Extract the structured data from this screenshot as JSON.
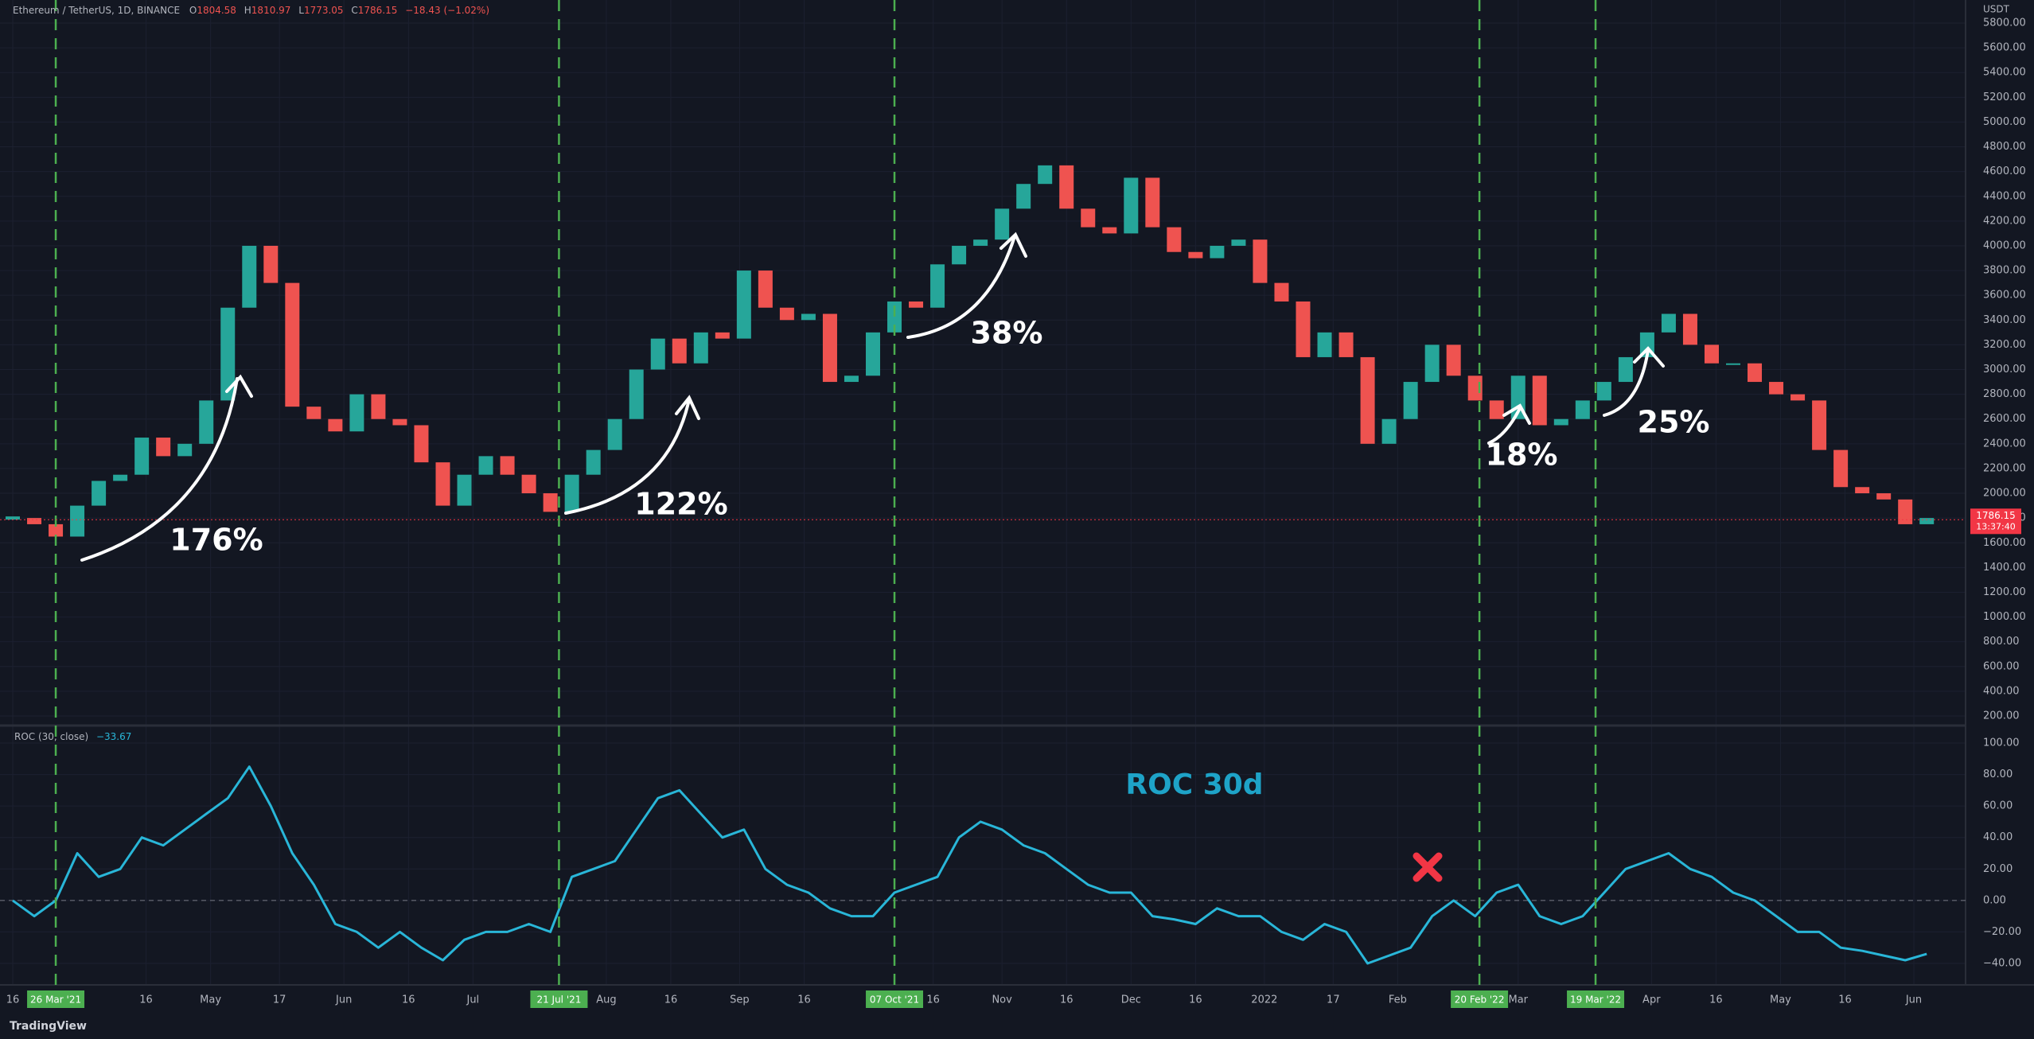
{
  "header": {
    "symbol": "Ethereum / TetherUS, 1D, BINANCE",
    "ohlc": [
      {
        "key": "O",
        "value": "1804.58"
      },
      {
        "key": "H",
        "value": "1810.97"
      },
      {
        "key": "L",
        "value": "1773.05"
      },
      {
        "key": "C",
        "value": "1786.15"
      }
    ],
    "change": "−18.43 (−1.02%)"
  },
  "indicator": {
    "label": "ROC (30, close)",
    "value": "−33.67"
  },
  "brand": "TradingView",
  "chart_data": [
    {
      "type": "candle",
      "ylabel": "USDT",
      "up_color": "#26a69a",
      "down_color": "#ef5350",
      "grid": true,
      "last_value": 1786.15,
      "countdown": "13:37:40",
      "last_color": "#f23645",
      "ylim": [
        200,
        5800
      ],
      "yticks": [
        {
          "value": 200,
          "label": "200.00"
        },
        {
          "value": 400,
          "label": "400.00"
        },
        {
          "value": 600,
          "label": "600.00"
        },
        {
          "value": 800,
          "label": "800.00"
        },
        {
          "value": 1000,
          "label": "1000.00"
        },
        {
          "value": 1200,
          "label": "1200.00"
        },
        {
          "value": 1400,
          "label": "1400.00"
        },
        {
          "value": 1600,
          "label": "1600.00"
        },
        {
          "value": 1800,
          "label": "1800.00"
        },
        {
          "value": 2000,
          "label": "2000.00"
        },
        {
          "value": 2200,
          "label": "2200.00"
        },
        {
          "value": 2400,
          "label": "2400.00"
        },
        {
          "value": 2600,
          "label": "2600.00"
        },
        {
          "value": 2800,
          "label": "2800.00"
        },
        {
          "value": 3000,
          "label": "3000.00"
        },
        {
          "value": 3200,
          "label": "3200.00"
        },
        {
          "value": 3400,
          "label": "3400.00"
        },
        {
          "value": 3600,
          "label": "3600.00"
        },
        {
          "value": 3800,
          "label": "3800.00"
        },
        {
          "value": 4000,
          "label": "4000.00"
        },
        {
          "value": 4200,
          "label": "4200.00"
        },
        {
          "value": 4400,
          "label": "4400.00"
        },
        {
          "value": 4600,
          "label": "4600.00"
        },
        {
          "value": 4800,
          "label": "4800.00"
        },
        {
          "value": 5000,
          "label": "5000.00"
        },
        {
          "value": 5200,
          "label": "5200.00"
        },
        {
          "value": 5400,
          "label": "5400.00"
        },
        {
          "value": 5600,
          "label": "5600.00"
        },
        {
          "value": 5800,
          "label": "5800.00"
        }
      ],
      "x": [
        "2021-03-16",
        "2021-03-21",
        "2021-03-26",
        "2021-03-31",
        "2021-04-05",
        "2021-04-10",
        "2021-04-15",
        "2021-04-20",
        "2021-04-25",
        "2021-04-30",
        "2021-05-05",
        "2021-05-10",
        "2021-05-15",
        "2021-05-20",
        "2021-05-25",
        "2021-05-30",
        "2021-06-04",
        "2021-06-09",
        "2021-06-14",
        "2021-06-19",
        "2021-06-24",
        "2021-06-29",
        "2021-07-04",
        "2021-07-09",
        "2021-07-14",
        "2021-07-19",
        "2021-07-24",
        "2021-07-29",
        "2021-08-03",
        "2021-08-08",
        "2021-08-13",
        "2021-08-18",
        "2021-08-23",
        "2021-08-28",
        "2021-09-02",
        "2021-09-07",
        "2021-09-12",
        "2021-09-17",
        "2021-09-22",
        "2021-09-27",
        "2021-10-02",
        "2021-10-07",
        "2021-10-12",
        "2021-10-17",
        "2021-10-22",
        "2021-10-27",
        "2021-11-01",
        "2021-11-06",
        "2021-11-11",
        "2021-11-16",
        "2021-11-21",
        "2021-11-26",
        "2021-12-01",
        "2021-12-06",
        "2021-12-11",
        "2021-12-16",
        "2021-12-21",
        "2021-12-26",
        "2021-12-31",
        "2022-01-05",
        "2022-01-10",
        "2022-01-15",
        "2022-01-20",
        "2022-01-25",
        "2022-01-30",
        "2022-02-04",
        "2022-02-09",
        "2022-02-14",
        "2022-02-19",
        "2022-02-24",
        "2022-03-01",
        "2022-03-06",
        "2022-03-11",
        "2022-03-16",
        "2022-03-21",
        "2022-03-26",
        "2022-03-31",
        "2022-04-05",
        "2022-04-10",
        "2022-04-15",
        "2022-04-20",
        "2022-04-25",
        "2022-04-30",
        "2022-05-05",
        "2022-05-10",
        "2022-05-15",
        "2022-05-20",
        "2022-05-25",
        "2022-05-30",
        "2022-06-04"
      ],
      "values": [
        1800,
        1750,
        1650,
        1900,
        2100,
        2150,
        2450,
        2300,
        2400,
        2750,
        3500,
        4000,
        3700,
        2700,
        2600,
        2500,
        2800,
        2600,
        2550,
        2250,
        1900,
        2150,
        2300,
        2150,
        2000,
        1850,
        2150,
        2350,
        2600,
        3000,
        3250,
        3050,
        3300,
        3250,
        3800,
        3500,
        3400,
        3450,
        2900,
        2950,
        3300,
        3550,
        3500,
        3850,
        4000,
        4050,
        4300,
        4500,
        4650,
        4300,
        4150,
        4100,
        4550,
        4150,
        3950,
        3900,
        4000,
        4050,
        3700,
        3550,
        3100,
        3300,
        3100,
        2400,
        2600,
        2900,
        3200,
        2950,
        2750,
        2600,
        2950,
        2550,
        2600,
        2750,
        2900,
        3100,
        3300,
        3450,
        3200,
        3050,
        3050,
        2900,
        2800,
        2750,
        2350,
        2050,
        2000,
        1950,
        1750,
        1800
      ],
      "annotations": [
        "176%",
        "122%",
        "38%",
        "18%",
        "25%"
      ]
    },
    {
      "type": "line",
      "color": "#29b6d8",
      "grid": true,
      "ylim": [
        -40,
        100
      ],
      "yticks": [
        {
          "value": 100,
          "label": "100.00"
        },
        {
          "value": 80,
          "label": "80.00"
        },
        {
          "value": 60,
          "label": "60.00"
        },
        {
          "value": 40,
          "label": "40.00"
        },
        {
          "value": 20,
          "label": "20.00"
        },
        {
          "value": 0,
          "label": "0.00"
        },
        {
          "value": -20,
          "label": "−20.00"
        },
        {
          "value": -40,
          "label": "−40.00"
        }
      ],
      "x": [
        "2021-03-16",
        "2021-03-21",
        "2021-03-26",
        "2021-03-31",
        "2021-04-05",
        "2021-04-10",
        "2021-04-15",
        "2021-04-20",
        "2021-04-25",
        "2021-04-30",
        "2021-05-05",
        "2021-05-10",
        "2021-05-15",
        "2021-05-20",
        "2021-05-25",
        "2021-05-30",
        "2021-06-04",
        "2021-06-09",
        "2021-06-14",
        "2021-06-19",
        "2021-06-24",
        "2021-06-29",
        "2021-07-04",
        "2021-07-09",
        "2021-07-14",
        "2021-07-19",
        "2021-07-24",
        "2021-07-29",
        "2021-08-03",
        "2021-08-08",
        "2021-08-13",
        "2021-08-18",
        "2021-08-23",
        "2021-08-28",
        "2021-09-02",
        "2021-09-07",
        "2021-09-12",
        "2021-09-17",
        "2021-09-22",
        "2021-09-27",
        "2021-10-02",
        "2021-10-07",
        "2021-10-12",
        "2021-10-17",
        "2021-10-22",
        "2021-10-27",
        "2021-11-01",
        "2021-11-06",
        "2021-11-11",
        "2021-11-16",
        "2021-11-21",
        "2021-11-26",
        "2021-12-01",
        "2021-12-06",
        "2021-12-11",
        "2021-12-16",
        "2021-12-21",
        "2021-12-26",
        "2021-12-31",
        "2022-01-05",
        "2022-01-10",
        "2022-01-15",
        "2022-01-20",
        "2022-01-25",
        "2022-01-30",
        "2022-02-04",
        "2022-02-09",
        "2022-02-14",
        "2022-02-19",
        "2022-02-24",
        "2022-03-01",
        "2022-03-06",
        "2022-03-11",
        "2022-03-16",
        "2022-03-21",
        "2022-03-26",
        "2022-03-31",
        "2022-04-05",
        "2022-04-10",
        "2022-04-15",
        "2022-04-20",
        "2022-04-25",
        "2022-04-30",
        "2022-05-05",
        "2022-05-10",
        "2022-05-15",
        "2022-05-20",
        "2022-05-25",
        "2022-05-30",
        "2022-06-04"
      ],
      "values": [
        0,
        -10,
        0,
        30,
        15,
        20,
        40,
        35,
        45,
        55,
        65,
        85,
        60,
        30,
        10,
        -15,
        -20,
        -30,
        -20,
        -30,
        -38,
        -25,
        -20,
        -20,
        -15,
        -20,
        15,
        20,
        25,
        45,
        65,
        70,
        55,
        40,
        45,
        20,
        10,
        5,
        -5,
        -10,
        -10,
        5,
        10,
        15,
        40,
        50,
        45,
        35,
        30,
        20,
        10,
        5,
        5,
        -10,
        -12,
        -15,
        -5,
        -10,
        -10,
        -20,
        -25,
        -15,
        -20,
        -40,
        -35,
        -30,
        -10,
        0,
        -10,
        5,
        10,
        -10,
        -15,
        -10,
        5,
        20,
        25,
        30,
        20,
        15,
        5,
        0,
        -10,
        -20,
        -20,
        -30,
        -32,
        -35,
        -38,
        -34
      ],
      "annotations": [
        "ROC 30d"
      ],
      "xticks": [
        {
          "value": "2021-03-16",
          "label": "16"
        },
        {
          "value": "2021-04-16",
          "label": "16"
        },
        {
          "value": "2021-05-01",
          "label": "May"
        },
        {
          "value": "2021-05-17",
          "label": "17"
        },
        {
          "value": "2021-06-01",
          "label": "Jun"
        },
        {
          "value": "2021-06-16",
          "label": "16"
        },
        {
          "value": "2021-07-01",
          "label": "Jul"
        },
        {
          "value": "2021-08-01",
          "label": "Aug"
        },
        {
          "value": "2021-08-16",
          "label": "16"
        },
        {
          "value": "2021-09-01",
          "label": "Sep"
        },
        {
          "value": "2021-09-16",
          "label": "16"
        },
        {
          "value": "2021-10-16",
          "label": "16"
        },
        {
          "value": "2021-11-01",
          "label": "Nov"
        },
        {
          "value": "2021-11-16",
          "label": "16"
        },
        {
          "value": "2021-12-01",
          "label": "Dec"
        },
        {
          "value": "2021-12-16",
          "label": "16"
        },
        {
          "value": "2022-01-01",
          "label": "2022"
        },
        {
          "value": "2022-01-17",
          "label": "17"
        },
        {
          "value": "2022-02-01",
          "label": "Feb"
        },
        {
          "value": "2022-03-01",
          "label": "Mar"
        },
        {
          "value": "2022-04-01",
          "label": "Apr"
        },
        {
          "value": "2022-04-16",
          "label": "16"
        },
        {
          "value": "2022-05-01",
          "label": "May"
        },
        {
          "value": "2022-05-16",
          "label": "16"
        },
        {
          "value": "2022-06-01",
          "label": "Jun"
        }
      ],
      "vlines_color": "#4caf50",
      "vlines": [
        {
          "value": "2021-03-26",
          "label": "26 Mar '21"
        },
        {
          "value": "2021-07-21",
          "label": "21 Jul '21"
        },
        {
          "value": "2021-10-07",
          "label": "07 Oct '21"
        },
        {
          "value": "2022-02-20",
          "label": "20 Feb '22"
        },
        {
          "value": "2022-03-19",
          "label": "19 Mar '22"
        }
      ]
    }
  ]
}
